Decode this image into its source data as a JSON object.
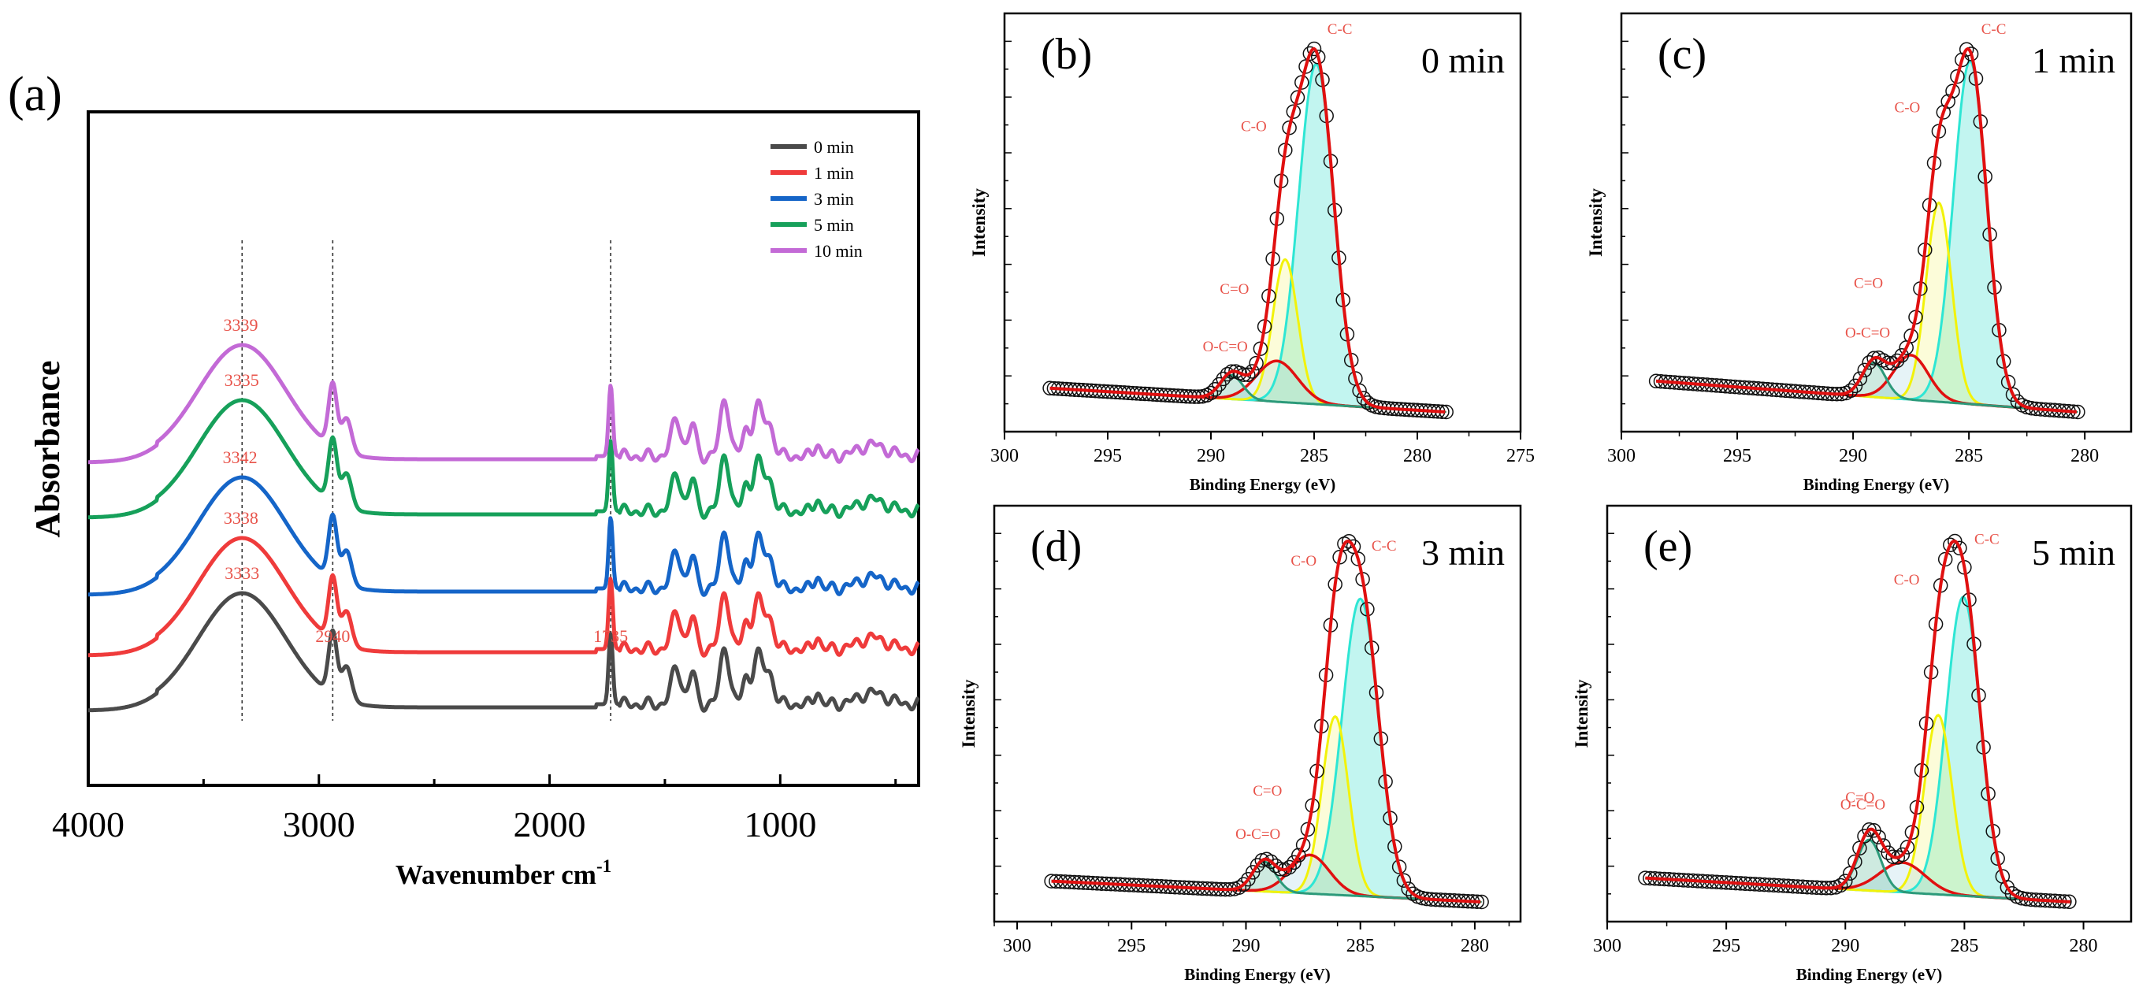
{
  "colors": {
    "gray": "#4a4a4a",
    "red": "#ef3b3b",
    "blue": "#1565c8",
    "green": "#16a05a",
    "purple": "#c36ad6",
    "anno": "#e8534a",
    "fitRed": "#e01010",
    "cyan": "#2ee6d4",
    "yellow": "#f2f20a",
    "teal": "#2c9a7a",
    "baseline": "#1f8a5a",
    "dark": "#111111"
  },
  "chart_data": [
    {
      "id": "a",
      "type": "line",
      "panel_label": "(a)",
      "xlabel": "Wavenumber cm",
      "xlabel_sup": "-1",
      "ylabel": "Absorbance",
      "xlim": [
        4000,
        400
      ],
      "xticks": [
        4000,
        3000,
        2000,
        1000
      ],
      "x_tick_labels": [
        "4000",
        "3000",
        "2000",
        "1000"
      ],
      "legend": {
        "position": "top-right",
        "entries": [
          "0 min",
          "1 min",
          "3 min",
          "5 min",
          "10 min"
        ]
      },
      "dashed_markers_x": [
        3333,
        2940,
        1735
      ],
      "series": [
        {
          "name": "0 min",
          "color_key": "gray",
          "offset": 0.0,
          "peak_label": "3333",
          "peak_x": 3333
        },
        {
          "name": "1 min",
          "color_key": "red",
          "offset": 1.0,
          "peak_label": "3338",
          "peak_x": 3338
        },
        {
          "name": "3 min",
          "color_key": "blue",
          "offset": 2.1,
          "peak_label": "3342",
          "peak_x": 3342
        },
        {
          "name": "5 min",
          "color_key": "green",
          "offset": 3.5,
          "peak_label": "3335",
          "peak_x": 3335
        },
        {
          "name": "10 min",
          "color_key": "purple",
          "offset": 4.5,
          "peak_label": "3339",
          "peak_x": 3339
        }
      ],
      "bottom_annotations": [
        {
          "text": "2940",
          "x": 2940
        },
        {
          "text": "1735",
          "x": 1735
        }
      ],
      "peaks": [
        {
          "center": 3333,
          "width": 190,
          "height": 1.0
        },
        {
          "center": 2940,
          "width": 18,
          "height": 0.55
        },
        {
          "center": 2880,
          "width": 22,
          "height": 0.3
        },
        {
          "center": 1735,
          "width": 9,
          "height": 0.62
        },
        {
          "center": 1450,
          "width": 22,
          "height": 0.32
        },
        {
          "center": 1380,
          "width": 15,
          "height": 0.28
        },
        {
          "center": 1240,
          "width": 20,
          "height": 0.5
        },
        {
          "center": 1150,
          "width": 15,
          "height": 0.22
        },
        {
          "center": 1100,
          "width": 20,
          "height": 0.42
        },
        {
          "center": 1050,
          "width": 22,
          "height": 0.28
        },
        {
          "center": 840,
          "width": 12,
          "height": 0.12
        },
        {
          "center": 600,
          "width": 60,
          "height": 0.1
        }
      ]
    },
    {
      "id": "b",
      "type": "line",
      "panel_label": "(b)",
      "time_label": "0 min",
      "xlabel": "Binding Energy (eV)",
      "ylabel": "Intensity",
      "xlim": [
        300,
        275
      ],
      "xticks": [
        300,
        295,
        290,
        285,
        280,
        275
      ],
      "x_tick_labels": [
        "300",
        "295",
        "290",
        "285",
        "280",
        "275"
      ],
      "data_range": [
        297.8,
        278.6
      ],
      "baseline": [
        0.07,
        0.0
      ],
      "components": [
        {
          "label": "C-C",
          "center": 284.9,
          "height": 1.0,
          "width": 0.85
        },
        {
          "label": "C-O",
          "center": 286.4,
          "height": 0.42,
          "width": 0.6
        },
        {
          "label": "C=O",
          "center": 286.8,
          "height": 0.12,
          "width": 1.0
        },
        {
          "label": "O-C=O",
          "center": 289.0,
          "height": 0.07,
          "width": 0.55
        }
      ]
    },
    {
      "id": "c",
      "type": "line",
      "panel_label": "(c)",
      "time_label": "1 min",
      "xlabel": "Binding Energy (eV)",
      "ylabel": "Intensity",
      "xlim": [
        300,
        278
      ],
      "xticks": [
        300,
        295,
        290,
        285,
        280
      ],
      "x_tick_labels": [
        "300",
        "295",
        "290",
        "285",
        "280"
      ],
      "data_range": [
        298.5,
        280.3
      ],
      "baseline": [
        0.09,
        0.0
      ],
      "components": [
        {
          "label": "C-C",
          "center": 284.95,
          "height": 1.0,
          "width": 0.72
        },
        {
          "label": "C-O",
          "center": 286.3,
          "height": 0.58,
          "width": 0.55
        },
        {
          "label": "C=O",
          "center": 287.5,
          "height": 0.13,
          "width": 0.75
        },
        {
          "label": "O-C=O",
          "center": 289.1,
          "height": 0.1,
          "width": 0.5
        }
      ]
    },
    {
      "id": "d",
      "type": "line",
      "panel_label": "(d)",
      "time_label": "3 min",
      "xlabel": "Binding Energy (eV)",
      "ylabel": "Intensity",
      "xlim": [
        301,
        278
      ],
      "xticks": [
        300,
        295,
        290,
        285,
        280
      ],
      "x_tick_labels": [
        "300",
        "295",
        "290",
        "285",
        "280"
      ],
      "data_range": [
        298.5,
        279.7
      ],
      "baseline": [
        0.07,
        0.0
      ],
      "components": [
        {
          "label": "C-C",
          "center": 285.0,
          "height": 1.0,
          "width": 0.8
        },
        {
          "label": "C-O",
          "center": 286.1,
          "height": 0.6,
          "width": 0.58
        },
        {
          "label": "C=O",
          "center": 287.2,
          "height": 0.13,
          "width": 0.85
        },
        {
          "label": "O-C=O",
          "center": 289.2,
          "height": 0.1,
          "width": 0.5
        }
      ]
    },
    {
      "id": "e",
      "type": "line",
      "panel_label": "(e)",
      "time_label": "5 min",
      "xlabel": "Binding Energy (eV)",
      "ylabel": "Intensity",
      "xlim": [
        300,
        278
      ],
      "xticks": [
        300,
        295,
        290,
        285,
        280
      ],
      "x_tick_labels": [
        "300",
        "295",
        "290",
        "285",
        "280"
      ],
      "data_range": [
        298.4,
        280.5
      ],
      "baseline": [
        0.08,
        0.0
      ],
      "components": [
        {
          "label": "C-C",
          "center": 285.05,
          "height": 1.0,
          "width": 0.72
        },
        {
          "label": "C-O",
          "center": 286.1,
          "height": 0.6,
          "width": 0.58
        },
        {
          "label": "C=O",
          "center": 287.6,
          "height": 0.1,
          "width": 0.95
        },
        {
          "label": "O-C=O",
          "center": 289.0,
          "height": 0.17,
          "width": 0.5
        }
      ]
    }
  ]
}
